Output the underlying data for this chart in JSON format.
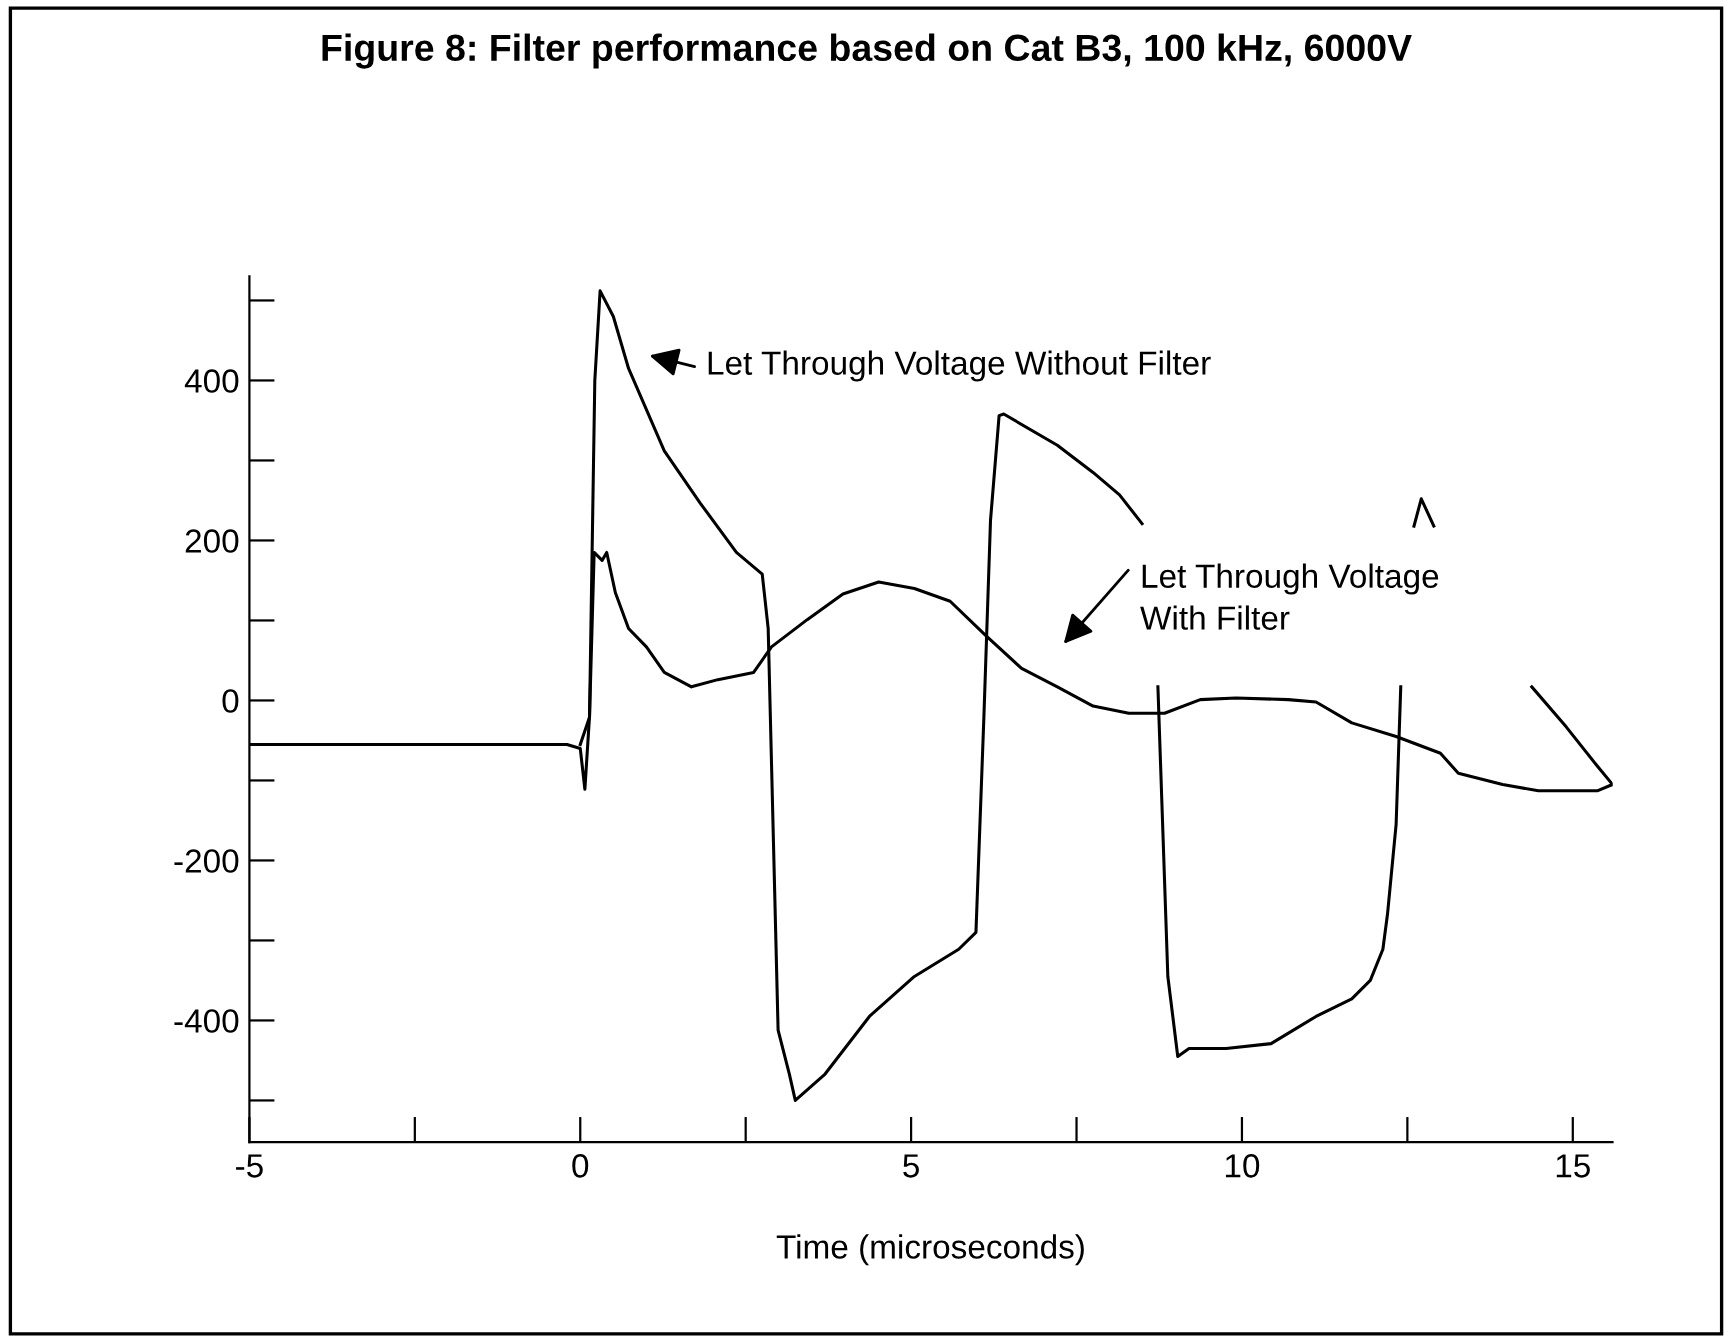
{
  "chart_data": {
    "type": "line",
    "title": "Figure 8: Filter performance based on Cat B3, 100 kHz, 6000V",
    "xlabel": "Time (microseconds)",
    "series": [
      {
        "color": "#000000",
        "x": [
          -5.0,
          -4.0,
          -3.0,
          -2.0,
          -1.0,
          -0.2,
          0.0,
          0.07,
          0.14,
          0.22,
          0.3,
          0.5,
          0.73,
          1.27,
          1.81,
          2.36,
          2.75,
          2.84,
          2.99,
          3.16,
          3.25,
          3.7,
          4.37,
          5.05,
          5.72,
          5.98,
          6.1,
          6.2,
          6.33,
          6.4,
          7.21,
          7.75,
          8.15,
          8.49,
          8.6,
          8.73,
          8.88,
          9.03,
          9.2,
          9.76,
          10.44,
          11.12,
          11.66,
          11.94,
          12.13,
          12.2,
          12.33,
          12.4,
          12.5,
          12.6,
          12.71,
          12.9,
          13.5,
          14.38,
          14.9,
          15.37,
          15.6
        ],
        "values": [
          -55,
          -55,
          -55,
          -55,
          -55,
          -55,
          -60,
          -111,
          -20,
          400,
          512,
          480,
          415,
          312,
          247,
          185,
          158,
          90,
          -412,
          -467,
          -500,
          -467,
          -395,
          -345,
          -311,
          -290,
          -21,
          225,
          356,
          358,
          319,
          285,
          257,
          221,
          null,
          17,
          -345,
          -445,
          -435,
          -435,
          -429,
          -395,
          -373,
          -350,
          -311,
          -267,
          -155,
          17,
          null,
          218,
          252,
          218,
          null,
          17,
          -33,
          -82,
          -105
        ]
      },
      {
        "color": "#000000",
        "x": [
          0.0,
          0.14,
          0.21,
          0.33,
          0.4,
          0.53,
          0.73,
          1.0,
          1.27,
          1.68,
          2.08,
          2.62,
          2.89,
          3.43,
          3.97,
          4.51,
          5.05,
          5.59,
          6.13,
          6.67,
          7.21,
          7.75,
          8.29,
          8.83,
          9.37,
          9.91,
          10.7,
          11.12,
          11.66,
          12.33,
          13.0,
          13.27,
          13.94,
          14.48,
          15.37,
          15.6
        ],
        "values": [
          -55,
          -21,
          185,
          175,
          185,
          135,
          90,
          67,
          35,
          17,
          26,
          35,
          67,
          101,
          133,
          148,
          140,
          124,
          81,
          40,
          17,
          -7,
          -16,
          -16,
          1,
          3,
          1,
          -2,
          -28,
          -45,
          -66,
          -91,
          -105,
          -113,
          -113,
          -105
        ]
      }
    ],
    "annotations": [
      "Let Through Voltage Without Filter",
      "Let Through Voltage\nWith Filter"
    ],
    "xlim": [
      -5,
      15.6
    ],
    "ylim": [
      -552,
      530
    ],
    "xticks": [
      -5,
      {
        "value": -2.5,
        "label": null
      },
      0,
      {
        "value": 2.5,
        "label": null
      },
      5,
      {
        "value": 7.5,
        "label": null
      },
      10,
      {
        "value": 12.5,
        "label": null
      },
      15
    ],
    "yticks": [
      {
        "value": -500,
        "label": null
      },
      -400,
      {
        "value": -300,
        "label": null
      },
      -200,
      {
        "value": -100,
        "label": null
      },
      0,
      {
        "value": 100,
        "label": null
      },
      200,
      {
        "value": 300,
        "label": null
      },
      400,
      {
        "value": 500,
        "label": null
      }
    ],
    "grid": false,
    "marker": "none",
    "line_style": "solid"
  }
}
